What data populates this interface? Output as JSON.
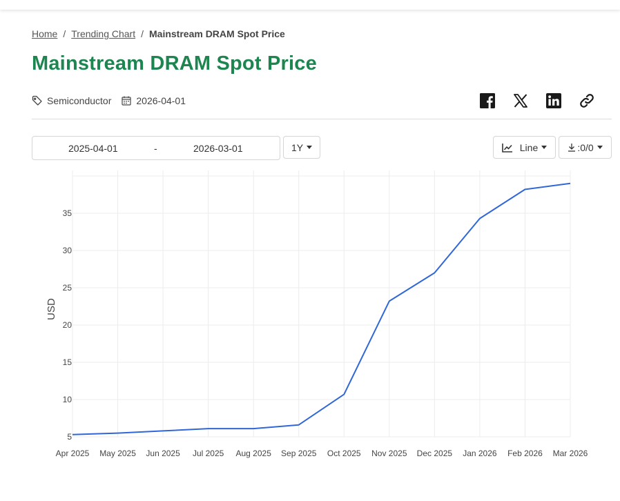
{
  "breadcrumb": {
    "home": "Home",
    "parent": "Trending Chart",
    "current": "Mainstream DRAM Spot Price"
  },
  "title": "Mainstream DRAM Spot Price",
  "meta": {
    "category": "Semiconductor",
    "date": "2026-04-01"
  },
  "share": [
    "facebook-icon",
    "x-icon",
    "linkedin-icon",
    "link-icon"
  ],
  "controls": {
    "range_start": "2025-04-01",
    "range_sep": "-",
    "range_end": "2026-03-01",
    "period": "1Y",
    "chart_type": "Line",
    "download": ":0/0"
  },
  "colors": {
    "title": "#1d8550",
    "line": "#2f66d8",
    "grid": "#ececec"
  },
  "chart_data": {
    "type": "line",
    "x": [
      "Apr 2025",
      "May 2025",
      "Jun 2025",
      "Jul 2025",
      "Aug 2025",
      "Sep 2025",
      "Oct 2025",
      "Nov 2025",
      "Dec 2025",
      "Jan 2026",
      "Feb 2026",
      "Mar 2026"
    ],
    "series": [
      {
        "values": [
          5.3,
          5.5,
          5.8,
          6.1,
          6.1,
          6.6,
          10.7,
          23.2,
          27.0,
          34.3,
          38.2,
          39.0
        ]
      }
    ],
    "xlabel": "",
    "ylabel": "USD",
    "ylim": [
      5,
      40
    ],
    "yticks": [
      5,
      10,
      15,
      20,
      25,
      30,
      35
    ],
    "grid": true
  }
}
